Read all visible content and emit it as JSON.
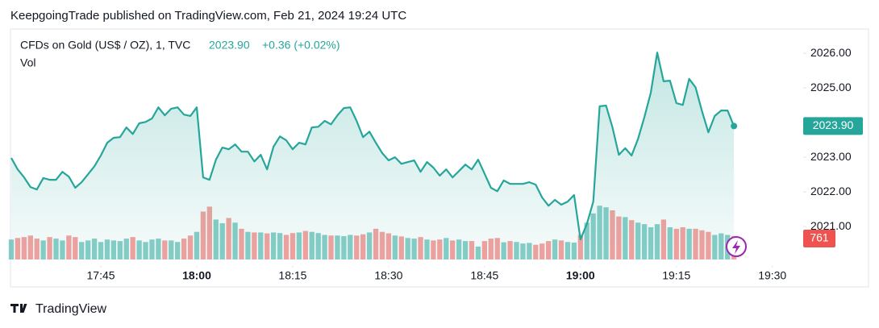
{
  "header": "KeepgoingTrade published on TradingView.com, Feb 21, 2024 19:24 UTC",
  "footer": "TradingView",
  "chart_data": {
    "type": "line",
    "x": [
      1051,
      1052,
      1053,
      1054,
      1055,
      1056,
      1057,
      1058,
      1059,
      1060,
      1061,
      1062,
      1063,
      1064,
      1065,
      1066,
      1067,
      1068,
      1069,
      1070,
      1071,
      1072,
      1073,
      1074,
      1075,
      1076,
      1077,
      1078,
      1079,
      1080,
      1081,
      1082,
      1083,
      1084,
      1085,
      1086,
      1087,
      1088,
      1089,
      1090,
      1091,
      1092,
      1093,
      1094,
      1095,
      1096,
      1097,
      1098,
      1099,
      1100,
      1101,
      1102,
      1103,
      1104,
      1105,
      1106,
      1107,
      1108,
      1109,
      1110,
      1111,
      1112,
      1113,
      1114,
      1115,
      1116,
      1117,
      1118,
      1119,
      1120,
      1121,
      1122,
      1123,
      1124,
      1125,
      1126,
      1127,
      1128,
      1129,
      1130,
      1131,
      1132,
      1133,
      1134,
      1135,
      1136,
      1137,
      1138,
      1139,
      1140,
      1141,
      1142,
      1143,
      1144,
      1145,
      1146,
      1147,
      1148,
      1149,
      1150,
      1151,
      1152,
      1153,
      1154,
      1155,
      1156,
      1157,
      1158,
      1159,
      1160,
      1161,
      1162,
      1163,
      1164
    ],
    "series": [
      {
        "name": "CFDs on Gold (US$ / OZ), 1, TVC",
        "color": "#26a69a",
        "values": [
          2022.98,
          2022.65,
          2022.42,
          2022.14,
          2022.07,
          2022.4,
          2022.35,
          2022.35,
          2022.58,
          2022.44,
          2022.12,
          2022.28,
          2022.51,
          2022.74,
          2023.05,
          2023.42,
          2023.56,
          2023.58,
          2023.86,
          2023.67,
          2023.98,
          2024.02,
          2024.12,
          2024.44,
          2024.21,
          2024.4,
          2024.44,
          2024.23,
          2024.19,
          2024.44,
          2022.42,
          2022.35,
          2022.93,
          2023.28,
          2023.23,
          2023.37,
          2023.16,
          2023.16,
          2022.88,
          2023.07,
          2022.65,
          2023.3,
          2023.6,
          2023.49,
          2023.23,
          2023.42,
          2023.37,
          2023.86,
          2023.88,
          2024.05,
          2023.95,
          2024.21,
          2024.42,
          2024.44,
          2024.05,
          2023.58,
          2023.74,
          2023.42,
          2023.12,
          2022.91,
          2023.0,
          2022.81,
          2022.86,
          2022.91,
          2022.58,
          2022.86,
          2022.7,
          2022.47,
          2022.65,
          2022.42,
          2022.6,
          2022.79,
          2022.65,
          2022.93,
          2022.53,
          2022.12,
          2022.02,
          2022.33,
          2022.23,
          2022.23,
          2022.23,
          2022.28,
          2022.21,
          2021.84,
          2021.6,
          2021.77,
          2021.63,
          2021.72,
          2021.91,
          2020.63,
          2021.07,
          2021.72,
          2024.47,
          2024.49,
          2023.86,
          2023.07,
          2023.26,
          2023.05,
          2023.53,
          2024.16,
          2024.86,
          2026.02,
          2025.19,
          2025.21,
          2024.56,
          2024.51,
          2025.26,
          2025.02,
          2024.33,
          2023.72,
          2024.19,
          2024.35,
          2024.35,
          2023.9
        ]
      },
      {
        "name": "Vol",
        "axis": "y2",
        "up_color": "#26a69a",
        "down_color": "#ef5350",
        "values": [
          650,
          700,
          730,
          780,
          680,
          620,
          730,
          680,
          620,
          780,
          730,
          570,
          620,
          680,
          570,
          650,
          620,
          600,
          680,
          730,
          620,
          570,
          650,
          680,
          620,
          620,
          570,
          680,
          780,
          900,
          1560,
          1720,
          1300,
          1180,
          1350,
          1200,
          1000,
          900,
          880,
          880,
          850,
          880,
          860,
          800,
          860,
          880,
          930,
          900,
          860,
          800,
          780,
          780,
          760,
          800,
          780,
          820,
          880,
          1000,
          900,
          850,
          780,
          750,
          700,
          680,
          730,
          650,
          620,
          650,
          700,
          620,
          650,
          600,
          600,
          420,
          600,
          680,
          700,
          560,
          600,
          570,
          520,
          540,
          480,
          520,
          600,
          650,
          620,
          570,
          550,
          800,
          1200,
          1500,
          1750,
          1700,
          1600,
          1400,
          1380,
          1280,
          1200,
          1150,
          1050,
          1150,
          1300,
          1050,
          1000,
          1050,
          1000,
          1000,
          950,
          900,
          800,
          850,
          800,
          761
        ]
      }
    ],
    "last_price_label": "2023.90",
    "change_label": "+0.36 (+0.02%)",
    "xlim": [
      1051,
      1174.5
    ],
    "xticks": [
      {
        "value": 1065,
        "label": "17:45"
      },
      {
        "value": 1080,
        "label": "18:00"
      },
      {
        "value": 1095,
        "label": "18:15"
      },
      {
        "value": 1110,
        "label": "18:30"
      },
      {
        "value": 1125,
        "label": "18:45"
      },
      {
        "value": 1140,
        "label": "19:00"
      },
      {
        "value": 1155,
        "label": "19:15"
      },
      {
        "value": 1170,
        "label": "19:30"
      }
    ],
    "ylim": [
      2020.05,
      2026.7
    ],
    "yticks": [
      {
        "value": 2021,
        "label": "2021.00"
      },
      {
        "value": 2022,
        "label": "2022.00"
      },
      {
        "value": 2023,
        "label": "2023.00"
      },
      {
        "value": 2024,
        "label": "2024.00"
      },
      {
        "value": 2025,
        "label": "2025.00"
      },
      {
        "value": 2026,
        "label": "2026.00"
      }
    ],
    "y2lim": [
      0,
      7500
    ]
  }
}
